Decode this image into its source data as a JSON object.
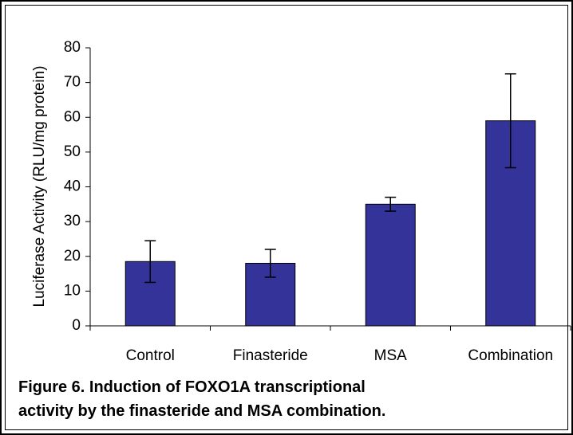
{
  "chart_data": {
    "type": "bar",
    "ylabel": "Luciferase Activity (RLU/mg protein)",
    "categories": [
      "Control",
      "Finasteride",
      "MSA",
      "Combination"
    ],
    "values": [
      18.5,
      18,
      35,
      59
    ],
    "errors": [
      6,
      4,
      2,
      13.5
    ],
    "color": "#333399",
    "ylim": [
      0,
      80
    ],
    "yticks": [
      0,
      10,
      20,
      30,
      40,
      50,
      60,
      70,
      80
    ],
    "grid": false,
    "caption": [
      "Figure 6.  Induction of FOXO1A transcriptional",
      "activity by the finasteride and MSA combination."
    ]
  }
}
